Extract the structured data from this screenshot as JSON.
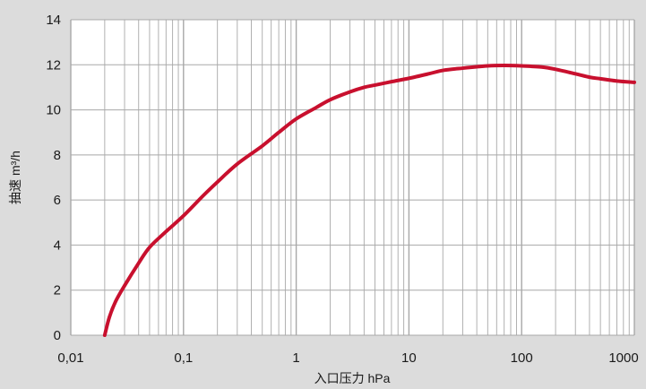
{
  "chart_data": {
    "type": "line",
    "xlabel": "入口压力 hPa",
    "ylabel": "抽速 m³/h",
    "xscale": "log",
    "xlim": [
      0.01,
      1000
    ],
    "ylim": [
      0,
      14
    ],
    "grid": true,
    "x_ticks": [
      {
        "value": 0.01,
        "label": "0,01"
      },
      {
        "value": 0.1,
        "label": "0,1"
      },
      {
        "value": 1,
        "label": "1"
      },
      {
        "value": 10,
        "label": "10"
      },
      {
        "value": 100,
        "label": "100"
      },
      {
        "value": 1000,
        "label": "1000"
      }
    ],
    "y_ticks": [
      0,
      2,
      4,
      6,
      8,
      10,
      12,
      14
    ],
    "series": [
      {
        "color": "#c8102e",
        "points": [
          [
            0.02,
            0.0
          ],
          [
            0.022,
            0.8
          ],
          [
            0.025,
            1.5
          ],
          [
            0.03,
            2.2
          ],
          [
            0.04,
            3.2
          ],
          [
            0.05,
            3.9
          ],
          [
            0.07,
            4.6
          ],
          [
            0.1,
            5.3
          ],
          [
            0.15,
            6.2
          ],
          [
            0.2,
            6.8
          ],
          [
            0.3,
            7.6
          ],
          [
            0.5,
            8.4
          ],
          [
            0.7,
            9.0
          ],
          [
            1.0,
            9.6
          ],
          [
            1.5,
            10.1
          ],
          [
            2.0,
            10.45
          ],
          [
            3.0,
            10.8
          ],
          [
            4.0,
            11.0
          ],
          [
            5.0,
            11.1
          ],
          [
            7.0,
            11.25
          ],
          [
            10,
            11.4
          ],
          [
            15,
            11.6
          ],
          [
            20,
            11.75
          ],
          [
            30,
            11.85
          ],
          [
            50,
            11.95
          ],
          [
            70,
            11.97
          ],
          [
            100,
            11.95
          ],
          [
            150,
            11.9
          ],
          [
            200,
            11.8
          ],
          [
            300,
            11.6
          ],
          [
            400,
            11.45
          ],
          [
            500,
            11.38
          ],
          [
            700,
            11.28
          ],
          [
            1000,
            11.22
          ]
        ]
      }
    ]
  }
}
